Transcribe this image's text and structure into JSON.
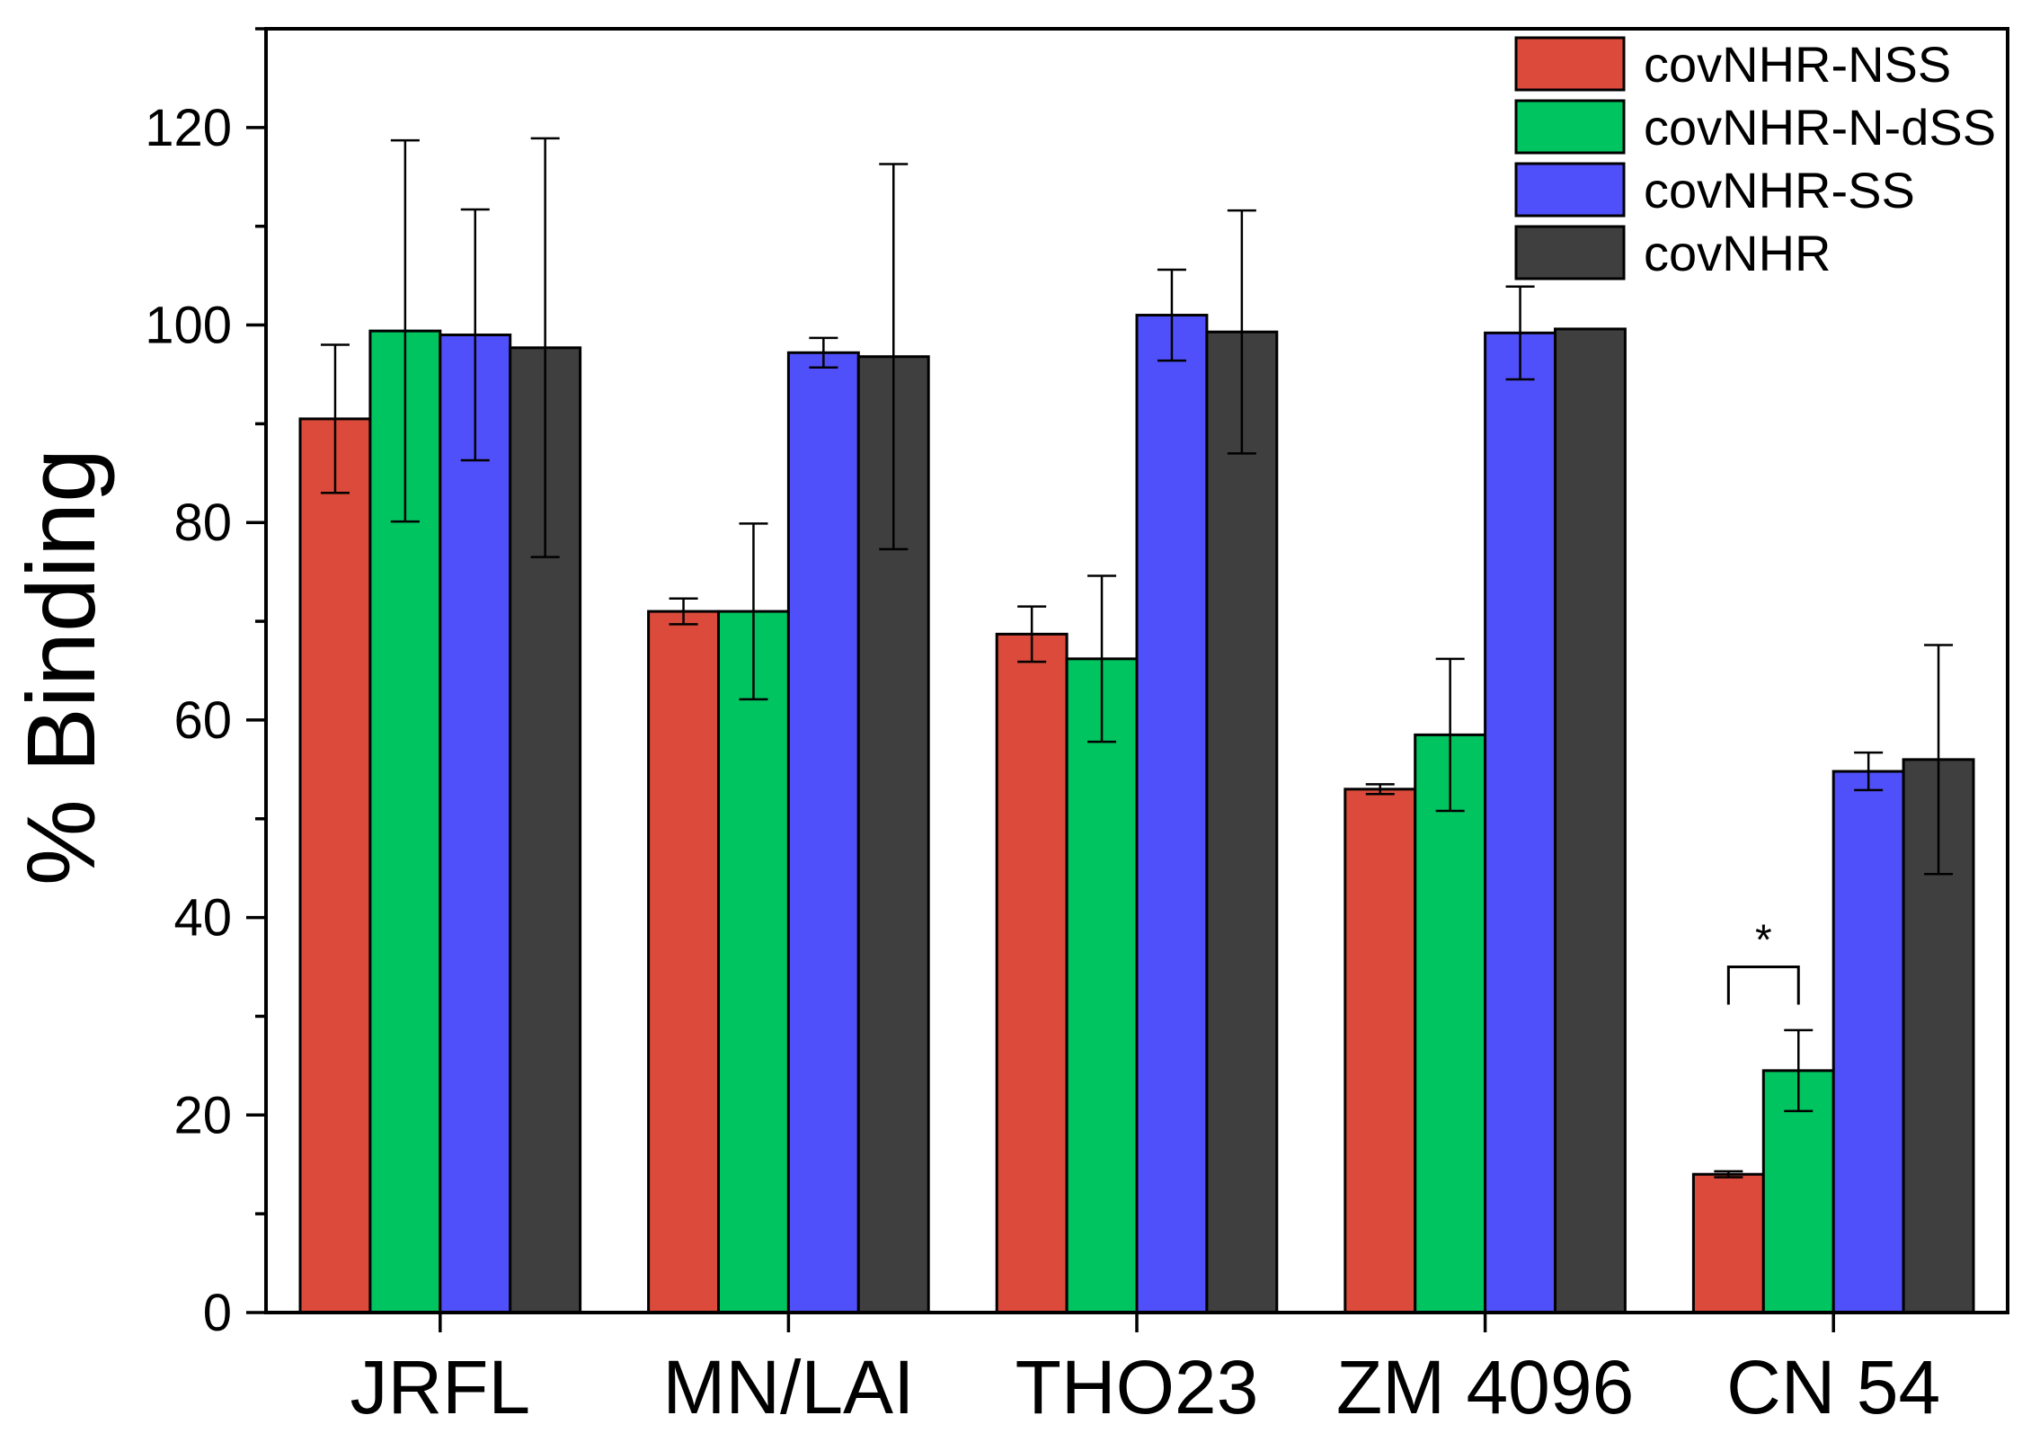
{
  "chart_data": {
    "type": "bar",
    "title": "",
    "xlabel": "",
    "ylabel": "% Binding",
    "ylim": [
      0,
      130
    ],
    "yticks": [
      0,
      20,
      40,
      60,
      80,
      100,
      120
    ],
    "grid": false,
    "legend_position": "top-right",
    "categories": [
      "JRFL",
      "MN/LAI",
      "THO23",
      "ZM 4096",
      "CN 54"
    ],
    "series": [
      {
        "name": "covNHR-NSS",
        "color": "#DB4A3A",
        "values": [
          90.5,
          71.0,
          68.7,
          53.0,
          14.0
        ],
        "errors": [
          7.5,
          1.3,
          2.8,
          0.5,
          0.3
        ]
      },
      {
        "name": "covNHR-N-dSS",
        "color": "#00C45F",
        "values": [
          99.4,
          71.0,
          66.2,
          58.5,
          24.5
        ],
        "errors": [
          19.3,
          8.9,
          8.4,
          7.7,
          4.1
        ]
      },
      {
        "name": "covNHR-SS",
        "color": "#5050FB",
        "values": [
          99.0,
          97.2,
          101.0,
          99.2,
          54.8
        ],
        "errors": [
          12.7,
          1.5,
          4.6,
          4.7,
          1.9
        ]
      },
      {
        "name": "covNHR",
        "color": "#3F3F3F",
        "values": [
          97.7,
          96.8,
          99.3,
          99.6,
          56.0
        ],
        "errors": [
          21.2,
          19.5,
          12.3,
          0.0,
          11.6
        ]
      }
    ],
    "annotations": [
      {
        "text": "*",
        "category": "CN 54",
        "between_series": [
          "covNHR-NSS",
          "covNHR-N-dSS"
        ],
        "bracket_y": 35
      }
    ]
  }
}
